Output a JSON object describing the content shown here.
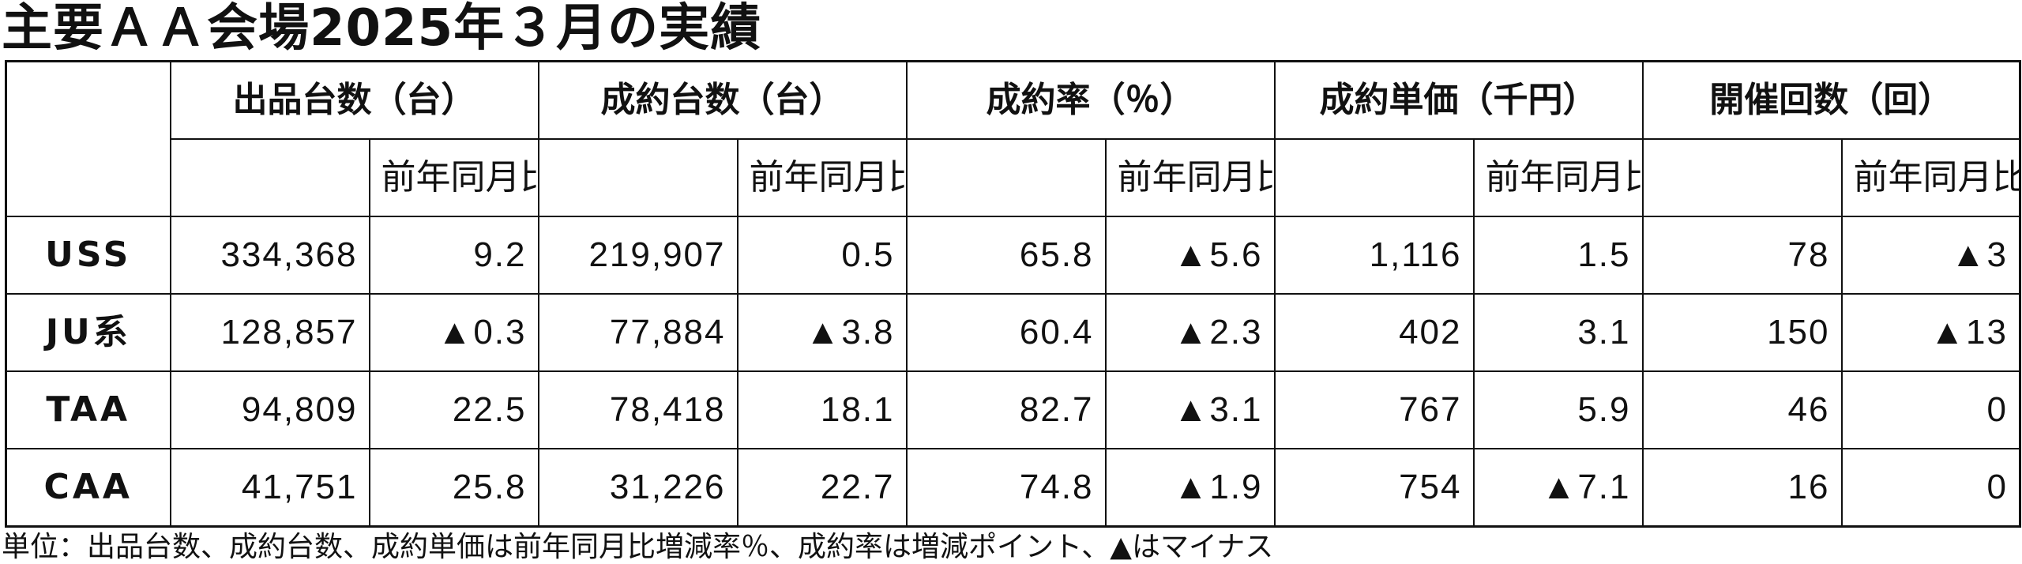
{
  "title": "主要ＡＡ会場2025年３月の実績",
  "columns": {
    "groups": [
      {
        "label": "出品台数（台）",
        "sub": "前年同月比"
      },
      {
        "label": "成約台数（台）",
        "sub": "前年同月比"
      },
      {
        "label": "成約率（％）",
        "sub": "前年同月比"
      },
      {
        "label": "成約単価（千円）",
        "sub": "前年同月比"
      },
      {
        "label": "開催回数（回）",
        "sub": "前年同月比"
      }
    ]
  },
  "rows": [
    {
      "name": "USS",
      "values": [
        "334,368",
        "9.2",
        "219,907",
        "0.5",
        "65.8",
        "▲5.6",
        "1,116",
        "1.5",
        "78",
        "▲3"
      ]
    },
    {
      "name": "JU系",
      "values": [
        "128,857",
        "▲0.3",
        "77,884",
        "▲3.8",
        "60.4",
        "▲2.3",
        "402",
        "3.1",
        "150",
        "▲13"
      ]
    },
    {
      "name": "TAA",
      "values": [
        "94,809",
        "22.5",
        "78,418",
        "18.1",
        "82.7",
        "▲3.1",
        "767",
        "5.9",
        "46",
        "0"
      ]
    },
    {
      "name": "CAA",
      "values": [
        "41,751",
        "25.8",
        "31,226",
        "22.7",
        "74.8",
        "▲1.9",
        "754",
        "▲7.1",
        "16",
        "0"
      ]
    }
  ],
  "footnote": "単位：出品台数、成約台数、成約単価は前年同月比増減率％、成約率は増減ポイント、▲はマイナス"
}
